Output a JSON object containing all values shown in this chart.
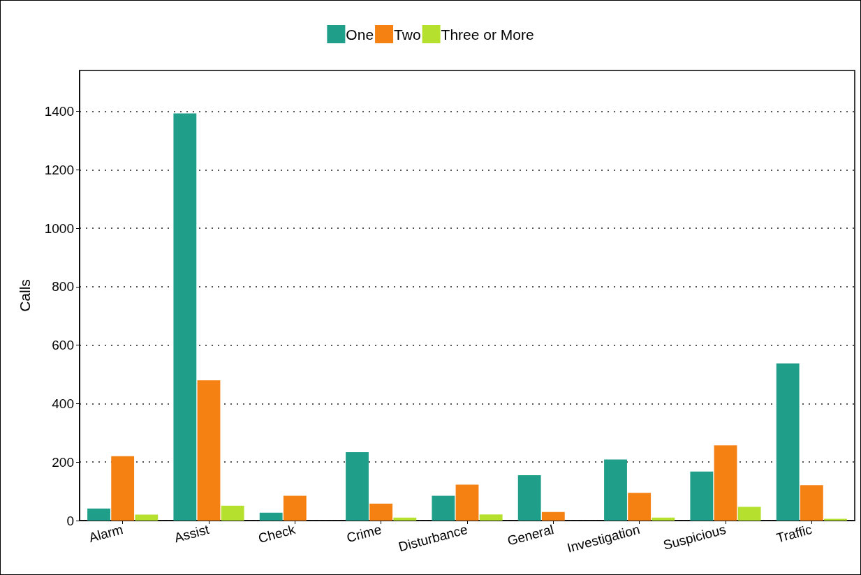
{
  "chart_data": {
    "type": "bar",
    "ylabel": "Calls",
    "categories": [
      "Alarm",
      "Assist",
      "Check",
      "Crime",
      "Disturbance",
      "General",
      "Investigation",
      "Suspicious",
      "Traffic"
    ],
    "series": [
      {
        "name": "One",
        "color": "#1f9e89",
        "values": [
          41,
          1393,
          27,
          234,
          85,
          155,
          209,
          168,
          538
        ]
      },
      {
        "name": "Two",
        "color": "#f68113",
        "values": [
          220,
          480,
          85,
          58,
          123,
          29,
          95,
          257,
          121
        ]
      },
      {
        "name": "Three or More",
        "color": "#b5e02d",
        "values": [
          20,
          51,
          null,
          10,
          21,
          null,
          10,
          47,
          6
        ]
      }
    ],
    "ylim": [
      0,
      1540
    ],
    "yticks": [
      0,
      200,
      400,
      600,
      800,
      1000,
      1200,
      1400
    ],
    "grid": "y",
    "legend": "top"
  }
}
